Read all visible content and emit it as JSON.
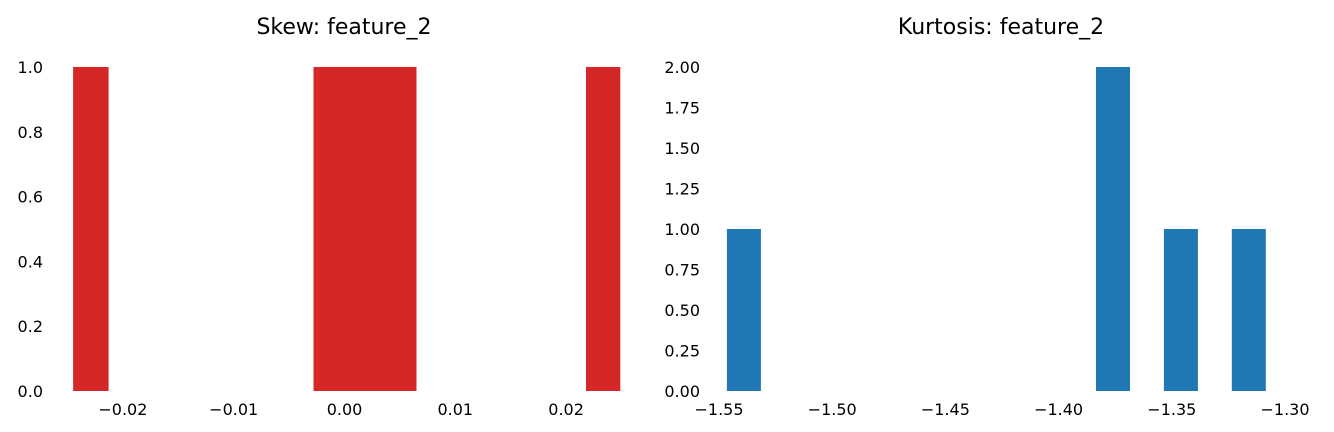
{
  "chart_data": [
    {
      "type": "bar",
      "title": "Skew: feature_2",
      "xlabel": "",
      "ylabel": "",
      "color": "#d62728",
      "xlim": [
        -0.0255,
        0.0255
      ],
      "ylim": [
        0,
        1.0
      ],
      "xticks": [
        -0.02,
        -0.01,
        0.0,
        0.01,
        0.02
      ],
      "xtick_labels": [
        "−0.02",
        "−0.01",
        "0.00",
        "0.01",
        "0.02"
      ],
      "yticks": [
        0.0,
        0.2,
        0.4,
        0.6,
        0.8,
        1.0
      ],
      "ytick_labels": [
        "0.0",
        "0.2",
        "0.4",
        "0.6",
        "0.8",
        "1.0"
      ],
      "grid": false,
      "bars": [
        {
          "x0": -0.0245,
          "x1": -0.0213,
          "value": 1
        },
        {
          "x0": -0.0028,
          "x1": 0.0065,
          "value": 1
        },
        {
          "x0": 0.0218,
          "x1": 0.0249,
          "value": 1
        }
      ]
    },
    {
      "type": "bar",
      "title": "Kurtosis: feature_2",
      "xlabel": "",
      "ylabel": "",
      "color": "#1f77b4",
      "xlim": [
        -1.55,
        -1.3
      ],
      "ylim": [
        0,
        2.0
      ],
      "xticks": [
        -1.55,
        -1.5,
        -1.45,
        -1.4,
        -1.35,
        -1.3
      ],
      "xtick_labels": [
        "−1.55",
        "−1.50",
        "−1.45",
        "−1.40",
        "−1.35",
        "−1.30"
      ],
      "yticks": [
        0.0,
        0.25,
        0.5,
        0.75,
        1.0,
        1.25,
        1.5,
        1.75,
        2.0
      ],
      "ytick_labels": [
        "0.00",
        "0.25",
        "0.50",
        "0.75",
        "1.00",
        "1.25",
        "1.50",
        "1.75",
        "2.00"
      ],
      "grid": false,
      "bars": [
        {
          "x0": -1.5465,
          "x1": -1.5315,
          "value": 1
        },
        {
          "x0": -1.3835,
          "x1": -1.3685,
          "value": 2
        },
        {
          "x0": -1.3535,
          "x1": -1.3385,
          "value": 1
        },
        {
          "x0": -1.3235,
          "x1": -1.3085,
          "value": 1
        }
      ]
    }
  ]
}
